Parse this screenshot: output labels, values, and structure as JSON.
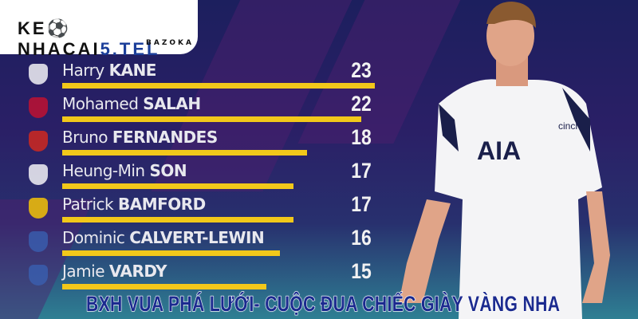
{
  "logo": {
    "brand_part1": "KE",
    "brand_part2": "NHACAI",
    "brand_part3": "5.TEL",
    "tagline": "BAZOKA"
  },
  "players": [
    {
      "first": "Harry",
      "last": "KANE",
      "goals": 23,
      "club_icon": "tottenham-crest-icon",
      "crest_color": "#ffffff"
    },
    {
      "first": "Mohamed",
      "last": "SALAH",
      "goals": 22,
      "club_icon": "liverpool-crest-icon",
      "crest_color": "#c8102e"
    },
    {
      "first": "Bruno",
      "last": "FERNANDES",
      "goals": 18,
      "club_icon": "man-utd-crest-icon",
      "crest_color": "#da291c"
    },
    {
      "first": "Heung-Min",
      "last": "SON",
      "goals": 17,
      "club_icon": "tottenham-crest-icon",
      "crest_color": "#ffffff"
    },
    {
      "first": "Patrick",
      "last": "BAMFORD",
      "goals": 17,
      "club_icon": "leeds-crest-icon",
      "crest_color": "#ffcd00"
    },
    {
      "first": "Dominic",
      "last": "CALVERT-LEWIN",
      "goals": 16,
      "club_icon": "everton-crest-icon",
      "crest_color": "#3a5fb0"
    },
    {
      "first": "Jamie",
      "last": "VARDY",
      "goals": 15,
      "club_icon": "leicester-crest-icon",
      "crest_color": "#3a5fb0"
    }
  ],
  "banner_title": "BXH VUA PHÁ LƯỚI- CUỘC ĐUA CHIẾC GIÀY VÀNG NHA",
  "player_shirt": {
    "sponsor": "AIA",
    "sleeve_sponsor": "cinch"
  },
  "colors": {
    "bar": "#f2c81a",
    "background": "#1c1f5e",
    "title": "#1b2a8f"
  }
}
